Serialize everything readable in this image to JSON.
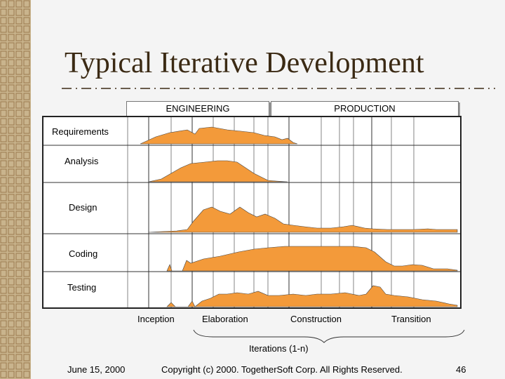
{
  "title": "Typical Iterative Development",
  "phase_groups": [
    "ENGINEERING",
    "PRODUCTION"
  ],
  "disciplines": [
    "Requirements",
    "Analysis",
    "Design",
    "Coding",
    "Testing"
  ],
  "phases": [
    "Inception",
    "Elaboration",
    "Construction",
    "Transition"
  ],
  "iterations_label": "Iterations (1-n)",
  "footer": {
    "date": "June 15, 2000",
    "copyright": "Copyright (c) 2000. TogetherSoft Corp. All Rights Reserved.",
    "page": "46"
  },
  "colors": {
    "area": "#f39a3a",
    "title": "#3b2a14",
    "band": "#9a7a4e"
  }
}
